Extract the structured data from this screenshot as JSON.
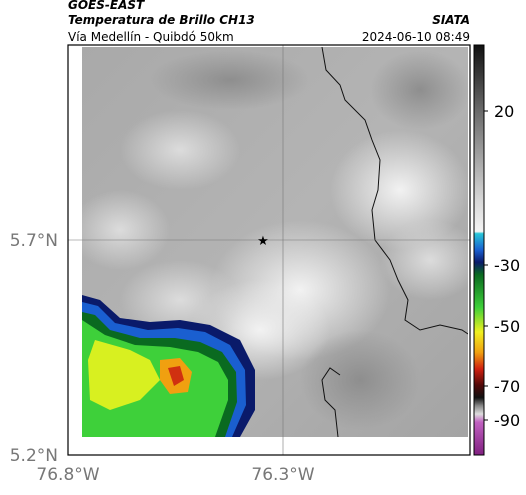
{
  "header": {
    "satellite": "GOES-EAST",
    "product": "Temperatura de Brillo CH13",
    "agency": "SIATA",
    "region": "Vía Medellín - Quibdó 50km",
    "datetime": "2024-06-10 08:49"
  },
  "map": {
    "lat_labels": [
      "5.7°N",
      "5.2°N"
    ],
    "lon_labels": [
      "76.8°W",
      "76.3°W"
    ]
  },
  "colorbar": {
    "ticks": [
      20,
      -30,
      -50,
      -70,
      -90
    ]
  }
}
